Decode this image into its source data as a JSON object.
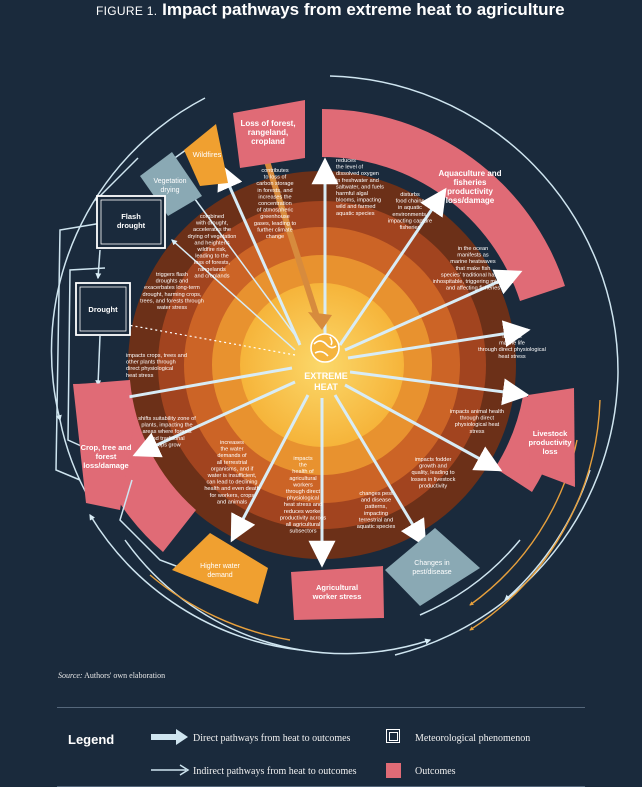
{
  "figure": {
    "label": "FIGURE 1.",
    "title": "Impact pathways from extreme heat to agriculture"
  },
  "center": {
    "line1": "EXTREME",
    "line2": "HEAT"
  },
  "colors": {
    "background": "#1a2a3c",
    "outcome": "#e06b76",
    "hazard_wildfire": "#f0a030",
    "hazard_vegetation": "#8aa9b4",
    "orange_arrow": "#e7a03c",
    "arrow_blue": "#cfe5f0"
  },
  "outcomes": [
    {
      "id": "loss-forest",
      "lines": [
        "Loss of forest,",
        "rangeland,",
        "cropland"
      ]
    },
    {
      "id": "aquaculture",
      "lines": [
        "Aquaculture and",
        "fisheries",
        "productivity",
        "loss/damage"
      ]
    },
    {
      "id": "livestock",
      "lines": [
        "Livestock",
        "productivity",
        "loss"
      ]
    },
    {
      "id": "agricultural-worker-stress",
      "lines": [
        "Agricultural",
        "worker stress"
      ]
    },
    {
      "id": "crop-tree-forest",
      "lines": [
        "Crop, tree and",
        "forest",
        "loss/damage"
      ]
    }
  ],
  "hazards": [
    {
      "id": "wildfires",
      "lines": [
        "Wildfires"
      ]
    },
    {
      "id": "vegetation-drying",
      "lines": [
        "Vegetation",
        "drying"
      ]
    },
    {
      "id": "flash-drought",
      "lines": [
        "Flash",
        "drought"
      ]
    },
    {
      "id": "drought",
      "lines": [
        "Drought"
      ]
    },
    {
      "id": "higher-water-demand",
      "lines": [
        "Higher water",
        "demand"
      ]
    },
    {
      "id": "changes-pest-disease",
      "lines": [
        "Changes in",
        "pest/disease"
      ]
    }
  ],
  "pathways": [
    {
      "id": "contributes-loss",
      "lines": [
        "contributes",
        "to loss of",
        "carbon storage",
        "in forests, and",
        "increases the",
        "concentration",
        "of atmospheric",
        "greenhouse",
        "gases, leading to",
        "further climate",
        "change"
      ]
    },
    {
      "id": "reduces-oxygen",
      "lines": [
        "reduces",
        "the level of",
        "dissolved oxygen",
        "in freshwater and",
        "saltwater, and fuels",
        "harmful algal",
        "blooms, impacting",
        "wild and farmed",
        "aquatic species"
      ]
    },
    {
      "id": "disturbs-food-chains",
      "lines": [
        "disturbs",
        "food chains",
        "in aquatic",
        "environments,",
        "impacting capture",
        "fisheries"
      ]
    },
    {
      "id": "marine-heatwaves",
      "lines": [
        "in the ocean",
        "manifests as",
        "marine heatwaves",
        "that make fish",
        "species' traditional habitat",
        "inhospitable, triggering migration",
        "and affecting fisheries"
      ]
    },
    {
      "id": "marine-life",
      "lines": [
        "impacts",
        "marine life",
        "through direct physiological",
        "heat stress"
      ]
    },
    {
      "id": "animal-health",
      "lines": [
        "impacts animal health",
        "through direct",
        "physiological heat",
        "stress"
      ]
    },
    {
      "id": "fodder-growth",
      "lines": [
        "impacts fodder",
        "growth and",
        "quality, leading to",
        "losses in livestock",
        "productivity"
      ]
    },
    {
      "id": "pest-patterns",
      "lines": [
        "changes pest",
        "and disease",
        "patterns,",
        "impacting",
        "terrestrial and",
        "aquatic species"
      ]
    },
    {
      "id": "worker-health",
      "lines": [
        "impacts",
        "the",
        "health of",
        "agricultural",
        "workers",
        "through direct",
        "physiological",
        "heat stress and",
        "reduces worker",
        "productivity across",
        "all agricultural",
        "subsectors"
      ]
    },
    {
      "id": "water-demand",
      "lines": [
        "increases",
        "the water",
        "demands of",
        "all terrestrial",
        "organisms, and if",
        "water is insufficient,",
        "can lead to declining",
        "health and even death",
        "for workers, crops",
        "and animals"
      ]
    },
    {
      "id": "suitability-zone",
      "lines": [
        "shifts suitability zone of",
        "plants, impacting the",
        "areas where forests",
        "and traditional",
        "crops grow"
      ]
    },
    {
      "id": "crops-physiological",
      "lines": [
        "impacts crops, trees and",
        "other plants through",
        "direct physiological",
        "heat stress"
      ]
    },
    {
      "id": "flash-droughts-trigger",
      "lines": [
        "triggers flash",
        "droughts and",
        "exacerbates long-term",
        "drought, harming crops,",
        "trees, and forests through",
        "water stress"
      ]
    },
    {
      "id": "combined-drought",
      "lines": [
        "combined",
        "with drought,",
        "accelerates the",
        "drying of vegetation",
        "and heightens",
        "wildfire risk,",
        "leading to the",
        "loss of forests,",
        "rangelands",
        "and croplands"
      ]
    }
  ],
  "source": {
    "label": "Source:",
    "text": "Authors' own elaboration"
  },
  "legend": {
    "title": "Legend",
    "direct": "Direct pathways from heat to outcomes",
    "indirect": "Indirect pathways from heat to outcomes",
    "meteorological": "Meteorological phenomenon",
    "outcomes": "Outcomes"
  }
}
